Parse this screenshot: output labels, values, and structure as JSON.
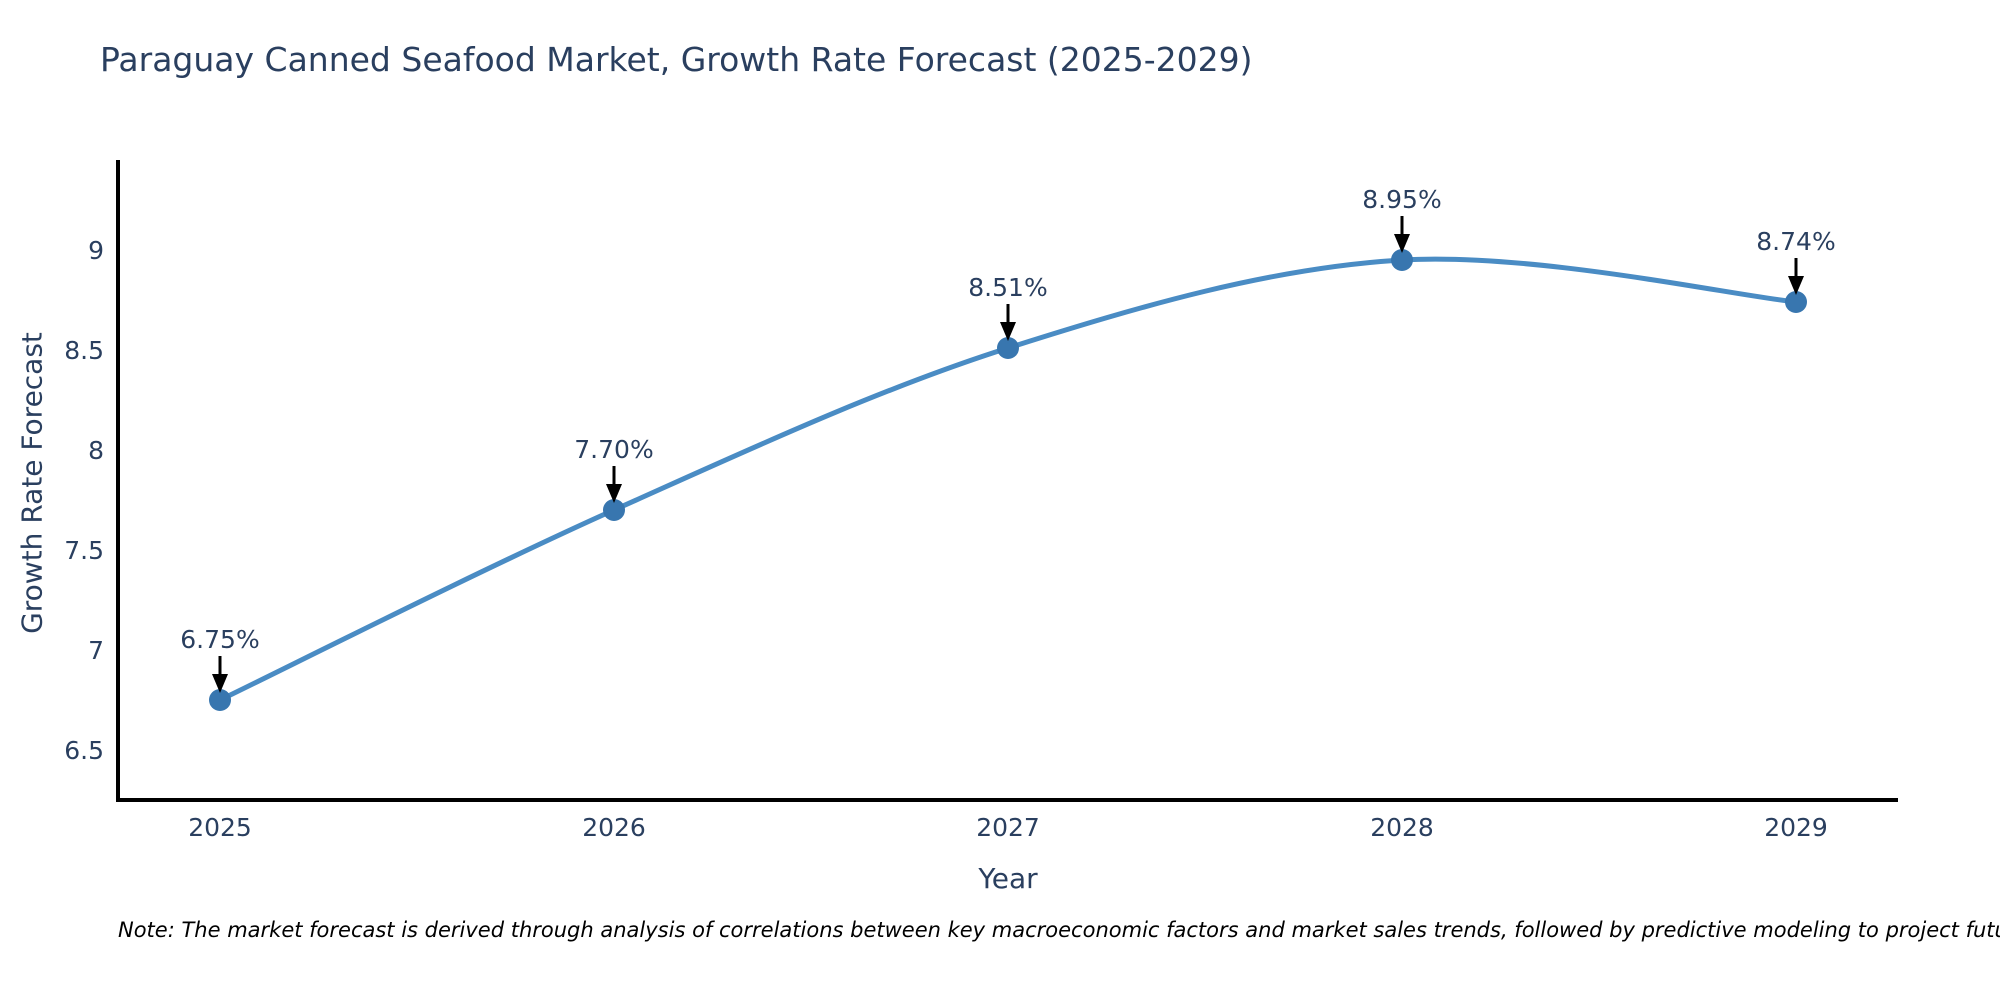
{
  "chart_data": {
    "type": "line",
    "title": "Paraguay Canned Seafood Market, Growth Rate Forecast (2025-2029)",
    "xlabel": "Year",
    "ylabel": "Growth Rate Forecast",
    "categories": [
      "2025",
      "2026",
      "2027",
      "2028",
      "2029"
    ],
    "values": [
      6.75,
      7.7,
      8.51,
      8.95,
      8.74
    ],
    "point_labels": [
      "6.75%",
      "7.70%",
      "8.51%",
      "8.95%",
      "8.74%"
    ],
    "ylim": [
      6.25,
      9.45
    ],
    "yticks": [
      6.5,
      7,
      7.5,
      8,
      8.5,
      9
    ],
    "ytick_labels": [
      "6.5",
      "7",
      "7.5",
      "8",
      "8.5",
      "9"
    ],
    "line_shape": "spline",
    "grid": false,
    "legend": "none",
    "note": "Note: The market forecast is derived through analysis of correlations between key macroeconomic factors and market sales trends, followed by predictive modeling to project future sales",
    "colors": {
      "line": "#4a8cc4",
      "marker": "#3876af",
      "axis": "#000000",
      "text": "#2a3f5f",
      "arrow": "#000000",
      "background": "#ffffff"
    }
  }
}
